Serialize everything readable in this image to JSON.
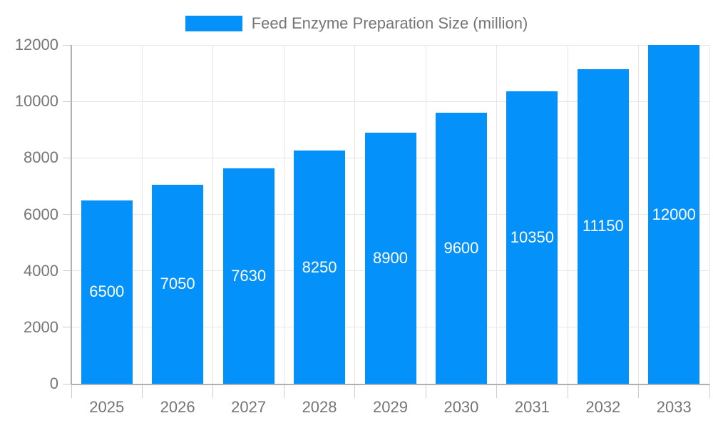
{
  "legend": {
    "label": "Feed Enzyme Preparation Size (million)"
  },
  "colors": {
    "bar": "#0591fa",
    "grid": "#e6e6e6",
    "axis": "#b0b0b0",
    "tick": "#cccccc",
    "axis_label": "#757575",
    "bar_label": "#ffffff",
    "background": "#ffffff"
  },
  "chart_data": {
    "type": "bar",
    "title": "Feed Enzyme Preparation Size (million)",
    "categories": [
      "2025",
      "2026",
      "2027",
      "2028",
      "2029",
      "2030",
      "2031",
      "2032",
      "2033"
    ],
    "values": [
      6500,
      7050,
      7630,
      8250,
      8900,
      9600,
      10350,
      11150,
      12000
    ],
    "bar_value_labels": [
      "6500",
      "7050",
      "7630",
      "8250",
      "8900",
      "9600",
      "10350",
      "11150",
      "12000"
    ],
    "xlabel": "",
    "ylabel": "",
    "ylim": [
      0,
      12000
    ],
    "yticks": [
      0,
      2000,
      4000,
      6000,
      8000,
      10000,
      12000
    ],
    "grid": true,
    "vertical_grid": true,
    "legend_position": "top",
    "bar_labels_inside": "center"
  }
}
